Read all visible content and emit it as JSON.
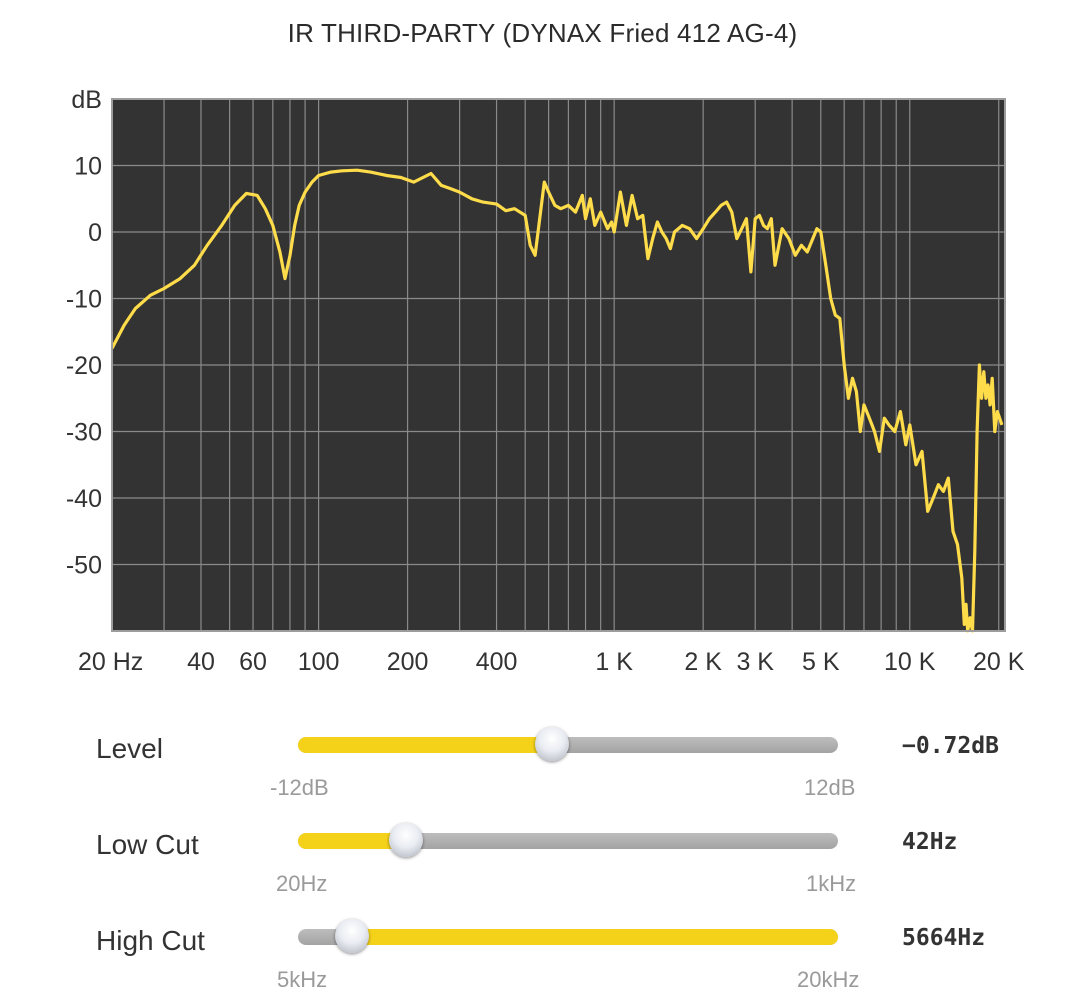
{
  "title": "IR THIRD-PARTY (DYNAX Fried 412 AG-4)",
  "chart_data": {
    "type": "line",
    "ylabel": "dB",
    "x_scale": "log",
    "y_ticks": [
      "10",
      "0",
      "-10",
      "-20",
      "-30",
      "-40",
      "-50"
    ],
    "x_tick_labels": [
      {
        "f": 20,
        "label": "20 Hz"
      },
      {
        "f": 40,
        "label": "40"
      },
      {
        "f": 60,
        "label": "60"
      },
      {
        "f": 100,
        "label": "100"
      },
      {
        "f": 200,
        "label": "200"
      },
      {
        "f": 400,
        "label": "400"
      },
      {
        "f": 1000,
        "label": "1 K"
      },
      {
        "f": 2000,
        "label": "2 K"
      },
      {
        "f": 3000,
        "label": "3 K"
      },
      {
        "f": 5000,
        "label": "5 K"
      },
      {
        "f": 10000,
        "label": "10 K"
      },
      {
        "f": 20000,
        "label": "20 K"
      }
    ],
    "xlim": [
      20,
      21000
    ],
    "ylim": [
      -60,
      20
    ],
    "grid": true,
    "colors": {
      "background": "#333333",
      "grid": "#8a8a8a",
      "line": "#ffdc4a"
    },
    "series": [
      {
        "x": [
          20,
          22,
          24,
          27,
          30,
          34,
          38,
          42,
          47,
          52,
          57,
          62,
          66,
          70,
          74,
          77,
          80,
          83,
          86,
          90,
          95,
          100,
          110,
          120,
          135,
          150,
          170,
          190,
          210,
          240,
          260,
          280,
          300,
          330,
          360,
          400,
          430,
          460,
          500,
          520,
          540,
          560,
          580,
          600,
          630,
          660,
          700,
          740,
          780,
          800,
          830,
          860,
          900,
          950,
          980,
          1000,
          1050,
          1100,
          1150,
          1200,
          1250,
          1300,
          1350,
          1400,
          1450,
          1500,
          1550,
          1600,
          1700,
          1800,
          1900,
          2000,
          2100,
          2200,
          2300,
          2400,
          2500,
          2600,
          2700,
          2800,
          2900,
          3000,
          3100,
          3200,
          3300,
          3400,
          3500,
          3700,
          3900,
          4100,
          4300,
          4500,
          4700,
          4850,
          5000,
          5200,
          5400,
          5600,
          5800,
          6000,
          6200,
          6400,
          6600,
          6800,
          7000,
          7300,
          7600,
          7900,
          8200,
          8500,
          8900,
          9300,
          9700,
          10000,
          10500,
          11000,
          11500,
          12000,
          12500,
          13000,
          13500,
          14000,
          14500,
          15000,
          15300,
          15500,
          15700,
          16000,
          16300,
          16600,
          16900,
          17200,
          17500,
          17800,
          18100,
          18400,
          18700,
          19000,
          19400,
          19800,
          20500
        ],
        "y": [
          -17.5,
          -14,
          -11.5,
          -9.5,
          -8.5,
          -7,
          -5,
          -2,
          1,
          4,
          5.8,
          5.5,
          3.5,
          1,
          -3,
          -7,
          -3.5,
          1,
          4,
          6,
          7.5,
          8.5,
          9,
          9.2,
          9.3,
          9,
          8.5,
          8.2,
          7.5,
          8.8,
          7,
          6.5,
          6,
          5,
          4.5,
          4.2,
          3.2,
          3.5,
          2.5,
          -2,
          -3.5,
          2,
          7.5,
          6,
          4,
          3.5,
          4,
          3,
          5.5,
          2,
          5,
          1,
          3,
          0.5,
          1.5,
          0,
          6,
          1,
          5.5,
          2,
          2.5,
          -4,
          -1,
          1.5,
          0,
          -1,
          -2.5,
          0,
          1,
          0.5,
          -1,
          0.5,
          2,
          3,
          4,
          4.5,
          3,
          -1,
          0.5,
          2,
          -6,
          2,
          2.5,
          1,
          0.5,
          2,
          -5,
          0.5,
          -1,
          -3.5,
          -2,
          -3,
          -1,
          0.5,
          0,
          -5,
          -10,
          -12.5,
          -13,
          -20,
          -25,
          -22,
          -24,
          -30,
          -26,
          -28,
          -30,
          -33,
          -28,
          -29,
          -30,
          -27,
          -32,
          -29,
          -35,
          -33,
          -42,
          -40,
          -38,
          -39,
          -37,
          -45,
          -47,
          -52,
          -59,
          -56,
          -60,
          -58,
          -60,
          -48,
          -30,
          -20,
          -25,
          -21,
          -25,
          -23,
          -26,
          -22,
          -30,
          -27,
          -29
        ]
      }
    ]
  },
  "controls": [
    {
      "name": "level",
      "label": "Level",
      "value": "−0.72dB",
      "min_label": "-12dB",
      "max_label": "12dB",
      "fraction": 0.47,
      "fill_side": "left"
    },
    {
      "name": "low-cut",
      "label": "Low Cut",
      "value": "42Hz",
      "min_label": "20Hz",
      "max_label": "1kHz",
      "fraction": 0.2,
      "fill_side": "left"
    },
    {
      "name": "high-cut",
      "label": "High Cut",
      "value": "5664Hz",
      "min_label": "5kHz",
      "max_label": "20kHz",
      "fraction": 0.1,
      "fill_side": "right"
    }
  ]
}
